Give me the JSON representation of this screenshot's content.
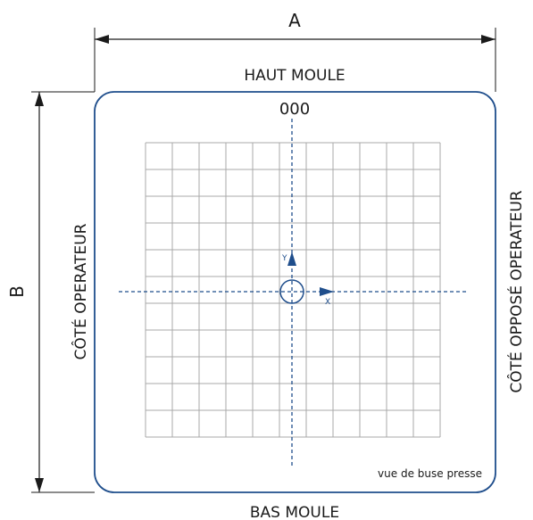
{
  "labels": {
    "width_dim": "A",
    "height_dim": "B",
    "top": "HAUT MOULE",
    "bottom": "BAS MOULE",
    "left": "CÔTÉ OPERATEUR",
    "right": "CÔTÉ OPPOSÉ OPERATEUR",
    "origin": "000",
    "axis_x": "X",
    "axis_y": "Y",
    "view_note": "vue de buse presse"
  },
  "grid": {
    "columns": 11,
    "rows": 11
  },
  "colors": {
    "plate_border": "#1f4e8c",
    "axis": "#1f4e8c",
    "grid": "#a8a8a8",
    "dimension": "#1a1a1a",
    "text": "#1a1a1a"
  }
}
